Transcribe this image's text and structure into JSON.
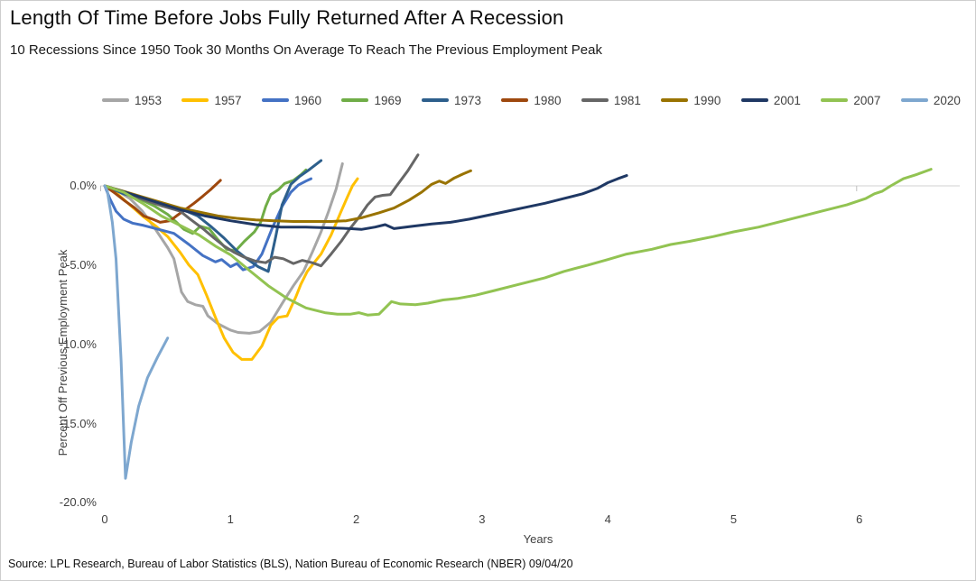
{
  "header": {
    "title": "Length Of Time Before Jobs Fully Returned After A Recession",
    "subtitle": "10 Recessions Since 1950 Took 30 Months On Average To Reach The Previous Employment Peak"
  },
  "footer": {
    "source": "Source: LPL Research, Bureau of Labor Statistics (BLS), Nation Bureau of Economic Research (NBER) 09/04/20"
  },
  "chart_data": {
    "type": "line",
    "title": "Length Of Time Before Jobs Fully Returned After A Recession",
    "subtitle": "10 Recessions Since 1950 Took 30 Months On Average To Reach The Previous Employment Peak",
    "xlabel": "Years",
    "ylabel": "Percent Off Previous Employment Peak",
    "xlim": [
      0,
      6.8
    ],
    "ylim": [
      -20,
      2
    ],
    "grid": "zero-line-only",
    "legend_position": "top",
    "x_ticks": [
      0,
      1,
      2,
      3,
      4,
      5,
      6
    ],
    "y_ticks": [
      {
        "label": "0.0%",
        "value": 0
      },
      {
        "label": "-5.0%",
        "value": -5
      },
      {
        "label": "-10.0%",
        "value": -10
      },
      {
        "label": "-15.0%",
        "value": -15
      },
      {
        "label": "-20.0%",
        "value": -20
      }
    ],
    "series": [
      {
        "name": "1953",
        "color": "#A6A6A6",
        "points": [
          [
            0,
            0
          ],
          [
            0.1,
            -0.3
          ],
          [
            0.2,
            -0.8
          ],
          [
            0.3,
            -1.6
          ],
          [
            0.4,
            -2.7
          ],
          [
            0.5,
            -3.9
          ],
          [
            0.55,
            -4.6
          ],
          [
            0.61,
            -6.7
          ],
          [
            0.66,
            -7.3
          ],
          [
            0.72,
            -7.5
          ],
          [
            0.78,
            -7.6
          ],
          [
            0.82,
            -8.2
          ],
          [
            0.9,
            -8.7
          ],
          [
            1.0,
            -9.1
          ],
          [
            1.06,
            -9.25
          ],
          [
            1.15,
            -9.3
          ],
          [
            1.23,
            -9.2
          ],
          [
            1.32,
            -8.6
          ],
          [
            1.42,
            -7.3
          ],
          [
            1.5,
            -6.3
          ],
          [
            1.58,
            -5.4
          ],
          [
            1.65,
            -4.2
          ],
          [
            1.72,
            -2.9
          ],
          [
            1.78,
            -1.6
          ],
          [
            1.84,
            -0.2
          ],
          [
            1.89,
            1.4
          ]
        ]
      },
      {
        "name": "1957",
        "color": "#FFC000",
        "points": [
          [
            0,
            0
          ],
          [
            0.1,
            -0.5
          ],
          [
            0.2,
            -1.2
          ],
          [
            0.3,
            -1.9
          ],
          [
            0.4,
            -2.5
          ],
          [
            0.5,
            -3.2
          ],
          [
            0.6,
            -4.2
          ],
          [
            0.67,
            -5.0
          ],
          [
            0.74,
            -5.6
          ],
          [
            0.81,
            -6.9
          ],
          [
            0.88,
            -8.3
          ],
          [
            0.95,
            -9.6
          ],
          [
            1.02,
            -10.5
          ],
          [
            1.09,
            -10.95
          ],
          [
            1.17,
            -10.95
          ],
          [
            1.25,
            -10.1
          ],
          [
            1.32,
            -8.8
          ],
          [
            1.38,
            -8.3
          ],
          [
            1.45,
            -8.2
          ],
          [
            1.52,
            -7.0
          ],
          [
            1.56,
            -6.2
          ],
          [
            1.61,
            -5.4
          ],
          [
            1.66,
            -4.9
          ],
          [
            1.72,
            -4.3
          ],
          [
            1.8,
            -3.1
          ],
          [
            1.88,
            -1.6
          ],
          [
            1.93,
            -0.7
          ],
          [
            1.97,
            0
          ],
          [
            2.01,
            0.45
          ]
        ]
      },
      {
        "name": "1960",
        "color": "#4472C4",
        "points": [
          [
            0,
            0
          ],
          [
            0.04,
            -0.8
          ],
          [
            0.09,
            -1.6
          ],
          [
            0.15,
            -2.1
          ],
          [
            0.22,
            -2.35
          ],
          [
            0.31,
            -2.5
          ],
          [
            0.43,
            -2.75
          ],
          [
            0.55,
            -3.0
          ],
          [
            0.67,
            -3.7
          ],
          [
            0.78,
            -4.4
          ],
          [
            0.88,
            -4.8
          ],
          [
            0.93,
            -4.65
          ],
          [
            1.0,
            -5.1
          ],
          [
            1.05,
            -4.9
          ],
          [
            1.1,
            -5.3
          ],
          [
            1.18,
            -5.1
          ],
          [
            1.25,
            -4.3
          ],
          [
            1.33,
            -2.7
          ],
          [
            1.41,
            -1.3
          ],
          [
            1.48,
            -0.4
          ],
          [
            1.54,
            0.05
          ],
          [
            1.6,
            0.3
          ],
          [
            1.64,
            0.45
          ]
        ]
      },
      {
        "name": "1969",
        "color": "#70AD47",
        "points": [
          [
            0,
            0
          ],
          [
            0.1,
            -0.25
          ],
          [
            0.2,
            -0.55
          ],
          [
            0.31,
            -0.95
          ],
          [
            0.4,
            -1.3
          ],
          [
            0.5,
            -1.8
          ],
          [
            0.57,
            -2.3
          ],
          [
            0.63,
            -2.75
          ],
          [
            0.7,
            -3.0
          ],
          [
            0.76,
            -2.55
          ],
          [
            0.83,
            -2.7
          ],
          [
            0.9,
            -3.4
          ],
          [
            0.97,
            -4.0
          ],
          [
            1.04,
            -4.1
          ],
          [
            1.11,
            -3.5
          ],
          [
            1.19,
            -2.9
          ],
          [
            1.24,
            -2.3
          ],
          [
            1.28,
            -1.3
          ],
          [
            1.32,
            -0.55
          ],
          [
            1.38,
            -0.25
          ],
          [
            1.43,
            0.15
          ],
          [
            1.5,
            0.35
          ],
          [
            1.56,
            0.7
          ],
          [
            1.6,
            1.0
          ]
        ]
      },
      {
        "name": "1973",
        "color": "#2D5F8C",
        "points": [
          [
            0,
            0
          ],
          [
            0.15,
            -0.5
          ],
          [
            0.31,
            -0.85
          ],
          [
            0.45,
            -1.1
          ],
          [
            0.52,
            -1.25
          ],
          [
            0.62,
            -1.5
          ],
          [
            0.74,
            -1.9
          ],
          [
            0.85,
            -2.6
          ],
          [
            0.95,
            -3.3
          ],
          [
            1.05,
            -4.1
          ],
          [
            1.13,
            -4.6
          ],
          [
            1.22,
            -5.1
          ],
          [
            1.3,
            -5.4
          ],
          [
            1.36,
            -3.2
          ],
          [
            1.41,
            -1.2
          ],
          [
            1.48,
            0.1
          ],
          [
            1.55,
            0.6
          ],
          [
            1.63,
            1.05
          ],
          [
            1.72,
            1.6
          ]
        ]
      },
      {
        "name": "1980",
        "color": "#9E480E",
        "points": [
          [
            0,
            0
          ],
          [
            0.08,
            -0.45
          ],
          [
            0.16,
            -0.95
          ],
          [
            0.24,
            -1.4
          ],
          [
            0.31,
            -1.9
          ],
          [
            0.38,
            -2.1
          ],
          [
            0.44,
            -2.3
          ],
          [
            0.48,
            -2.25
          ],
          [
            0.52,
            -2.2
          ],
          [
            0.57,
            -1.9
          ],
          [
            0.64,
            -1.5
          ],
          [
            0.71,
            -1.1
          ],
          [
            0.78,
            -0.65
          ],
          [
            0.84,
            -0.25
          ],
          [
            0.88,
            0.05
          ],
          [
            0.92,
            0.35
          ]
        ]
      },
      {
        "name": "1981",
        "color": "#666666",
        "points": [
          [
            0,
            0
          ],
          [
            0.15,
            -0.4
          ],
          [
            0.3,
            -0.85
          ],
          [
            0.45,
            -1.25
          ],
          [
            0.6,
            -1.6
          ],
          [
            0.68,
            -2.1
          ],
          [
            0.78,
            -2.7
          ],
          [
            0.87,
            -3.3
          ],
          [
            0.95,
            -3.8
          ],
          [
            1.03,
            -4.2
          ],
          [
            1.11,
            -4.5
          ],
          [
            1.2,
            -4.75
          ],
          [
            1.28,
            -4.85
          ],
          [
            1.35,
            -4.5
          ],
          [
            1.42,
            -4.6
          ],
          [
            1.5,
            -4.9
          ],
          [
            1.57,
            -4.7
          ],
          [
            1.65,
            -4.85
          ],
          [
            1.72,
            -5.05
          ],
          [
            1.8,
            -4.3
          ],
          [
            1.88,
            -3.5
          ],
          [
            1.95,
            -2.7
          ],
          [
            2.02,
            -2.0
          ],
          [
            2.09,
            -1.2
          ],
          [
            2.15,
            -0.7
          ],
          [
            2.21,
            -0.6
          ],
          [
            2.27,
            -0.55
          ],
          [
            2.33,
            0.1
          ],
          [
            2.41,
            0.95
          ],
          [
            2.49,
            1.95
          ]
        ]
      },
      {
        "name": "1990",
        "color": "#997300",
        "points": [
          [
            0,
            0
          ],
          [
            0.15,
            -0.35
          ],
          [
            0.3,
            -0.7
          ],
          [
            0.45,
            -1.05
          ],
          [
            0.6,
            -1.4
          ],
          [
            0.75,
            -1.65
          ],
          [
            0.9,
            -1.9
          ],
          [
            1.05,
            -2.05
          ],
          [
            1.2,
            -2.15
          ],
          [
            1.35,
            -2.2
          ],
          [
            1.5,
            -2.25
          ],
          [
            1.65,
            -2.25
          ],
          [
            1.8,
            -2.25
          ],
          [
            1.92,
            -2.2
          ],
          [
            2.05,
            -2.0
          ],
          [
            2.18,
            -1.7
          ],
          [
            2.3,
            -1.4
          ],
          [
            2.42,
            -0.9
          ],
          [
            2.52,
            -0.4
          ],
          [
            2.6,
            0.1
          ],
          [
            2.66,
            0.3
          ],
          [
            2.71,
            0.15
          ],
          [
            2.78,
            0.5
          ],
          [
            2.85,
            0.75
          ],
          [
            2.91,
            0.95
          ]
        ]
      },
      {
        "name": "2001",
        "color": "#1F3864",
        "points": [
          [
            0,
            0
          ],
          [
            0.2,
            -0.5
          ],
          [
            0.4,
            -1.0
          ],
          [
            0.6,
            -1.5
          ],
          [
            0.8,
            -1.9
          ],
          [
            1.0,
            -2.2
          ],
          [
            1.2,
            -2.45
          ],
          [
            1.4,
            -2.6
          ],
          [
            1.6,
            -2.6
          ],
          [
            1.8,
            -2.65
          ],
          [
            1.95,
            -2.7
          ],
          [
            2.04,
            -2.75
          ],
          [
            2.15,
            -2.6
          ],
          [
            2.23,
            -2.45
          ],
          [
            2.3,
            -2.7
          ],
          [
            2.45,
            -2.55
          ],
          [
            2.6,
            -2.4
          ],
          [
            2.75,
            -2.3
          ],
          [
            2.9,
            -2.1
          ],
          [
            3.05,
            -1.85
          ],
          [
            3.2,
            -1.6
          ],
          [
            3.35,
            -1.35
          ],
          [
            3.5,
            -1.1
          ],
          [
            3.65,
            -0.8
          ],
          [
            3.8,
            -0.5
          ],
          [
            3.92,
            -0.15
          ],
          [
            4.0,
            0.2
          ],
          [
            4.08,
            0.45
          ],
          [
            4.15,
            0.65
          ]
        ]
      },
      {
        "name": "2007",
        "color": "#92C352",
        "points": [
          [
            0,
            0
          ],
          [
            0.15,
            -0.4
          ],
          [
            0.3,
            -1.1
          ],
          [
            0.45,
            -1.9
          ],
          [
            0.6,
            -2.5
          ],
          [
            0.75,
            -3.1
          ],
          [
            0.88,
            -3.8
          ],
          [
            1.0,
            -4.35
          ],
          [
            1.16,
            -5.4
          ],
          [
            1.3,
            -6.3
          ],
          [
            1.45,
            -7.1
          ],
          [
            1.6,
            -7.7
          ],
          [
            1.75,
            -8.0
          ],
          [
            1.85,
            -8.1
          ],
          [
            1.95,
            -8.1
          ],
          [
            2.02,
            -8.0
          ],
          [
            2.09,
            -8.15
          ],
          [
            2.18,
            -8.1
          ],
          [
            2.28,
            -7.3
          ],
          [
            2.35,
            -7.45
          ],
          [
            2.47,
            -7.5
          ],
          [
            2.57,
            -7.4
          ],
          [
            2.69,
            -7.2
          ],
          [
            2.81,
            -7.1
          ],
          [
            2.95,
            -6.9
          ],
          [
            3.1,
            -6.6
          ],
          [
            3.3,
            -6.2
          ],
          [
            3.5,
            -5.8
          ],
          [
            3.65,
            -5.4
          ],
          [
            3.84,
            -5.0
          ],
          [
            4.0,
            -4.65
          ],
          [
            4.15,
            -4.3
          ],
          [
            4.35,
            -4.0
          ],
          [
            4.5,
            -3.7
          ],
          [
            4.65,
            -3.5
          ],
          [
            4.84,
            -3.2
          ],
          [
            5.0,
            -2.9
          ],
          [
            5.2,
            -2.6
          ],
          [
            5.4,
            -2.2
          ],
          [
            5.55,
            -1.9
          ],
          [
            5.7,
            -1.6
          ],
          [
            5.9,
            -1.2
          ],
          [
            6.05,
            -0.8
          ],
          [
            6.12,
            -0.5
          ],
          [
            6.18,
            -0.35
          ],
          [
            6.25,
            0.0
          ],
          [
            6.35,
            0.45
          ],
          [
            6.45,
            0.7
          ],
          [
            6.57,
            1.05
          ]
        ]
      },
      {
        "name": "2020",
        "color": "#7EA7CF",
        "points": [
          [
            0,
            0
          ],
          [
            0.02,
            -0.3
          ],
          [
            0.06,
            -2.3
          ],
          [
            0.09,
            -4.6
          ],
          [
            0.13,
            -11.0
          ],
          [
            0.165,
            -18.45
          ],
          [
            0.21,
            -16.2
          ],
          [
            0.27,
            -13.9
          ],
          [
            0.34,
            -12.1
          ],
          [
            0.42,
            -10.8
          ],
          [
            0.5,
            -9.6
          ]
        ]
      }
    ]
  }
}
